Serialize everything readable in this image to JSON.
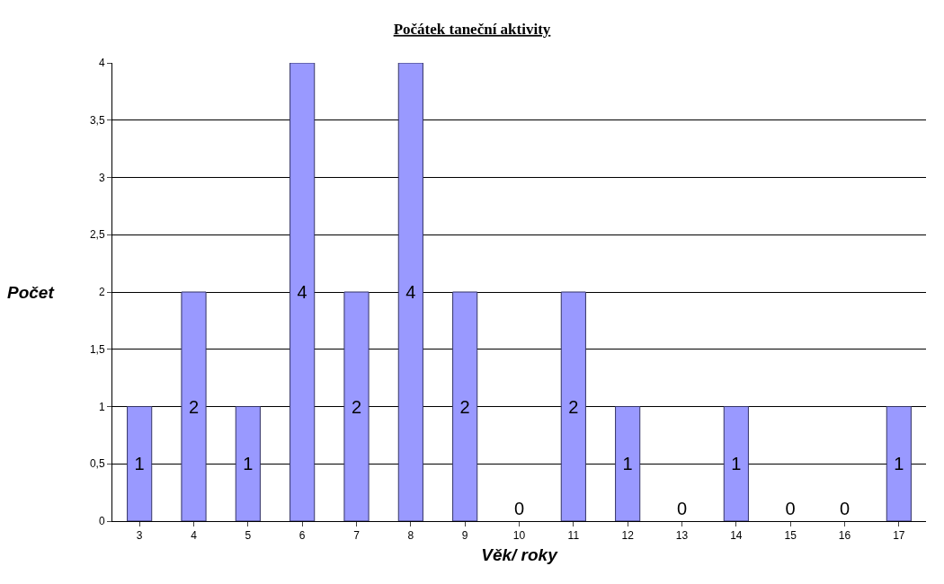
{
  "chart_data": {
    "type": "bar",
    "title": "Počátek taneční aktivity",
    "xlabel": "Věk/ roky",
    "ylabel": "Počet",
    "categories": [
      "3",
      "4",
      "5",
      "6",
      "7",
      "8",
      "9",
      "10",
      "11",
      "12",
      "13",
      "14",
      "15",
      "16",
      "17"
    ],
    "values": [
      1,
      2,
      1,
      4,
      2,
      4,
      2,
      0,
      2,
      1,
      0,
      1,
      0,
      0,
      1
    ],
    "color": "#9999ff",
    "ylim": [
      0,
      4
    ],
    "yticks": [
      0,
      {
        "value": 0.5,
        "label": "0,5"
      },
      1,
      {
        "value": 1.5,
        "label": "1,5"
      },
      2,
      {
        "value": 2.5,
        "label": "2,5"
      },
      3,
      {
        "value": 3.5,
        "label": "3,5"
      },
      4
    ],
    "grid": "y",
    "data_labels": true
  }
}
